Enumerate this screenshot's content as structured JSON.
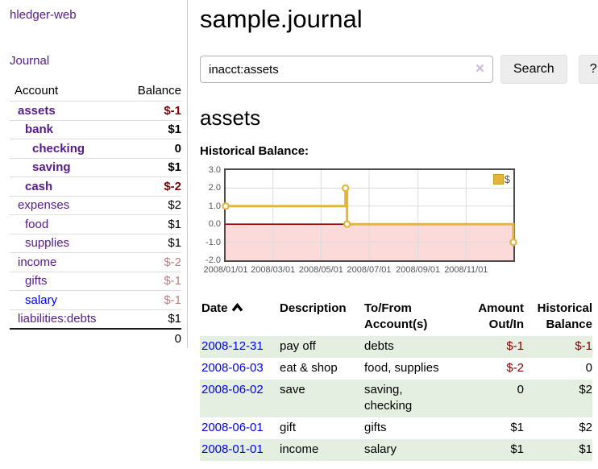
{
  "sidebar": {
    "brand": "hledger-web",
    "nav": {
      "journal": "Journal"
    },
    "table": {
      "col_account": "Account",
      "col_balance": "Balance",
      "accounts": [
        {
          "label": "assets",
          "indent": 1,
          "bold": true,
          "balance": "$-1",
          "balance_style": "neg",
          "unvisited": false
        },
        {
          "label": "bank",
          "indent": 2,
          "bold": true,
          "balance": "$1",
          "balance_style": "",
          "unvisited": false
        },
        {
          "label": "checking",
          "indent": 3,
          "bold": true,
          "balance": "0",
          "balance_style": "",
          "unvisited": false
        },
        {
          "label": "saving",
          "indent": 3,
          "bold": true,
          "balance": "$1",
          "balance_style": "",
          "unvisited": false
        },
        {
          "label": "cash",
          "indent": 2,
          "bold": true,
          "balance": "$-2",
          "balance_style": "neg",
          "unvisited": false
        },
        {
          "label": "expenses",
          "indent": 1,
          "bold": false,
          "balance": "$2",
          "balance_style": "",
          "unvisited": false
        },
        {
          "label": "food",
          "indent": 2,
          "bold": false,
          "balance": "$1",
          "balance_style": "",
          "unvisited": false
        },
        {
          "label": "supplies",
          "indent": 2,
          "bold": false,
          "balance": "$1",
          "balance_style": "",
          "unvisited": false
        },
        {
          "label": "income",
          "indent": 1,
          "bold": false,
          "balance": "$-2",
          "balance_style": "negmuted",
          "unvisited": false
        },
        {
          "label": "gifts",
          "indent": 2,
          "bold": false,
          "balance": "$-1",
          "balance_style": "negmuted",
          "unvisited": false
        },
        {
          "label": "salary",
          "indent": 2,
          "bold": false,
          "balance": "$-1",
          "balance_style": "negmuted",
          "unvisited": true
        },
        {
          "label": "liabilities:debts",
          "indent": 1,
          "bold": false,
          "balance": "$1",
          "balance_style": "",
          "unvisited": false
        }
      ],
      "total": "0"
    }
  },
  "header": {
    "title": "sample.journal"
  },
  "search": {
    "query": "inacct:assets",
    "clear_icon": "✕",
    "button": "Search",
    "help_button": "?"
  },
  "account_page": {
    "heading": "assets",
    "chart_label": "Historical Balance:"
  },
  "chart_data": {
    "type": "line",
    "style": "step",
    "title": "Historical Balance",
    "legend": "$",
    "series": [
      {
        "name": "$",
        "color": "#e3b53a",
        "points": [
          [
            "2008-01-01",
            1.0
          ],
          [
            "2008-06-01",
            2.0
          ],
          [
            "2008-06-03",
            0.0
          ],
          [
            "2008-12-31",
            -1.0
          ]
        ]
      }
    ],
    "x_range": [
      "2008-01-01",
      "2008-12-31"
    ],
    "x_ticks": [
      "2008/01/01",
      "2008/03/01",
      "2008/05/01",
      "2008/07/01",
      "2008/09/01",
      "2008/11/01"
    ],
    "y_ticks": [
      "3.0",
      "2.0",
      "1.0",
      "0.0",
      "-1.0",
      "-2.0"
    ],
    "ylim": [
      -2,
      3
    ],
    "grid": true,
    "legend_position": "top-right",
    "negative_region_color": "#fcdada",
    "zero_line_color": "#8b0000",
    "grid_color": "#dcdcdc",
    "border_color": "#4d4d4d"
  },
  "register": {
    "columns": {
      "date": "Date",
      "description": "Description",
      "accounts1": "To/From",
      "accounts2": "Account(s)",
      "amount1": "Amount",
      "amount2": "Out/In",
      "balance1": "Historical",
      "balance2": "Balance"
    },
    "rows": [
      {
        "date": "2008-12-31",
        "description": "pay off",
        "accounts": "debts",
        "amount": "$-1",
        "amount_neg": true,
        "balance": "$-1",
        "balance_neg": true
      },
      {
        "date": "2008-06-03",
        "description": "eat & shop",
        "accounts": "food, supplies",
        "amount": "$-2",
        "amount_neg": true,
        "balance": "0",
        "balance_neg": false
      },
      {
        "date": "2008-06-02",
        "description": "save",
        "accounts": "saving, checking",
        "amount": "0",
        "amount_neg": false,
        "balance": "$2",
        "balance_neg": false
      },
      {
        "date": "2008-06-01",
        "description": "gift",
        "accounts": "gifts",
        "amount": "$1",
        "amount_neg": false,
        "balance": "$2",
        "balance_neg": false
      },
      {
        "date": "2008-01-01",
        "description": "income",
        "accounts": "salary",
        "amount": "$1",
        "amount_neg": false,
        "balance": "$1",
        "balance_neg": false
      }
    ]
  },
  "colors": {
    "visited_link": "#551A8B",
    "unvisited_link": "#0000EE",
    "negative": "#800000",
    "negative_muted": "#bf7d7d",
    "row_stripe": "#e4eee1",
    "series_gold": "#e3b53a"
  }
}
